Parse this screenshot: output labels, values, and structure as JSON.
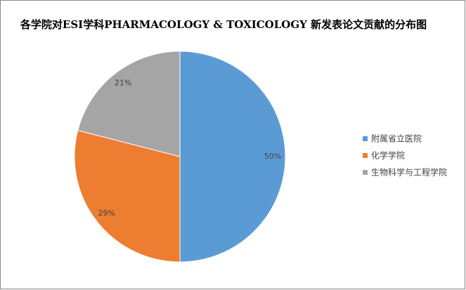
{
  "chart_data": {
    "type": "pie",
    "title": "各学院对ESI学科PHARMACOLOGY & TOXICOLOGY  新发表论文贡献的分布图",
    "categories": [
      "附属省立医院",
      "化学学院",
      "生物科学与工程学院"
    ],
    "values": [
      50,
      29,
      21
    ],
    "value_labels": [
      "50%",
      "29%",
      "21%"
    ],
    "colors": [
      "#5b9bd5",
      "#ed7d31",
      "#a5a5a5"
    ],
    "legend": "right"
  }
}
